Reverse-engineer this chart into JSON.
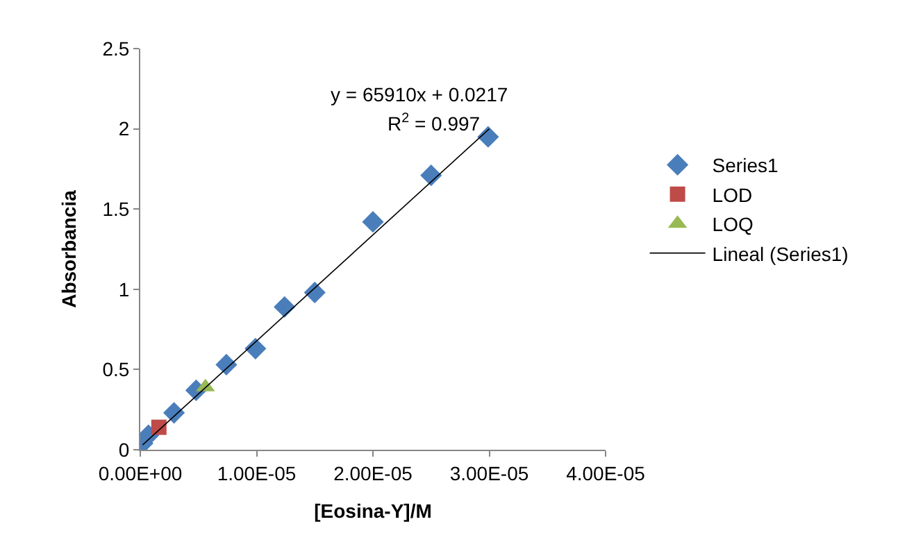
{
  "chart_data": {
    "type": "scatter",
    "xlabel": "[Eosina-Y]/M",
    "ylabel": "Absorbancia",
    "xlim": [
      0,
      4e-05
    ],
    "ylim": [
      0,
      2.5
    ],
    "xticks": [
      {
        "value": 0,
        "label": "0.00E+00"
      },
      {
        "value": 1e-05,
        "label": "1.00E-05"
      },
      {
        "value": 2e-05,
        "label": "2.00E-05"
      },
      {
        "value": 3e-05,
        "label": "3.00E-05"
      },
      {
        "value": 4e-05,
        "label": "4.00E-05"
      }
    ],
    "yticks": [
      0,
      0.5,
      1,
      1.5,
      2,
      2.5
    ],
    "legend": "right",
    "annotations": [
      "y = 65910x + 0.0217",
      "R$^{2}$ = 0.997"
    ],
    "series": [
      {
        "name": "Series1",
        "color": "#4a7ebb",
        "marker": "diamond",
        "x": [
          2e-07,
          7e-07,
          2.9e-06,
          4.8e-06,
          7.4e-06,
          9.9e-06,
          1.24e-05,
          1.5e-05,
          2e-05,
          2.5e-05,
          2.99e-05
        ],
        "values": [
          0.04,
          0.09,
          0.23,
          0.37,
          0.53,
          0.63,
          0.89,
          0.98,
          1.42,
          1.71,
          1.95
        ]
      },
      {
        "name": "LOD",
        "color": "#be4b48",
        "marker": "square",
        "x": [
          1.6e-06
        ],
        "values": [
          0.14
        ]
      },
      {
        "name": "LOQ",
        "color": "#98b954",
        "marker": "triangle",
        "x": [
          5.6e-06
        ],
        "values": [
          0.39
        ]
      },
      {
        "name": "Lineal (Series1)",
        "type": "line",
        "color": "#000000",
        "marker": "none",
        "line_style": "solid",
        "x": [
          2e-07,
          3e-05
        ],
        "values": [
          0.03,
          2.0
        ]
      }
    ]
  }
}
